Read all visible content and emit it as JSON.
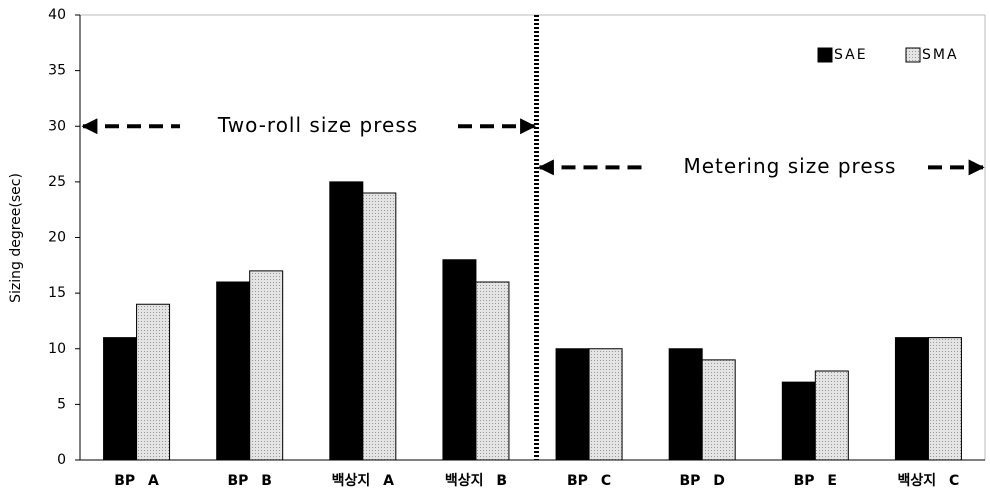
{
  "chart_data": {
    "type": "bar",
    "y_label": "Sizing degree(sec)",
    "categories": [
      "BP A",
      "BP B",
      "백상지 A",
      "백상지 B",
      "BP C",
      "BP D",
      "BP E",
      "백상지 C"
    ],
    "series": [
      {
        "name": "SAE",
        "color": "#000000",
        "values": [
          11,
          16,
          25,
          18,
          10,
          10,
          7,
          11
        ]
      },
      {
        "name": "SMA",
        "color": "#d9d9d9",
        "values": [
          14,
          17,
          24,
          16,
          10,
          9,
          8,
          11
        ]
      }
    ],
    "ylim": [
      0,
      40
    ],
    "yticks": [
      0,
      5,
      10,
      15,
      20,
      25,
      30,
      35,
      40
    ],
    "annotations": [
      "Two-roll size press",
      "Metering size press"
    ]
  }
}
